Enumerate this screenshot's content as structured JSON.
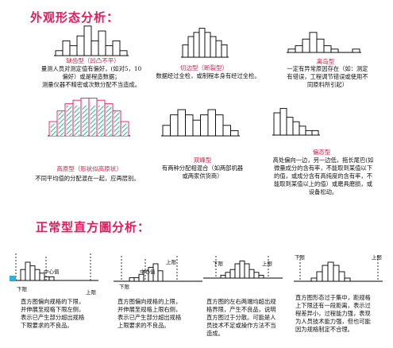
{
  "section1": {
    "title": "外观形态分析：",
    "patterns": [
      {
        "title": "缺齿型（凹凸不平）",
        "desc": [
          "量测人员对测定值有偏好，(如对5，10",
          "偏好）或是程造数据；",
          "测量仪器不精密或次数分配不当造成。"
        ]
      },
      {
        "title": "切边型（断裂型）",
        "desc": [
          "数据经过全检，或制程本身有经过全检。"
        ]
      },
      {
        "title": "离岛型",
        "desc": [
          "一定有异常原因存在（如：测定",
          "有错误，工程调节错误或使用不",
          "同原料所引起）"
        ]
      },
      {
        "title": "高原型（形状似高原状）",
        "desc": [
          "不同平均值的分配混在一起，应再层别。"
        ]
      },
      {
        "title": "双峰型",
        "desc": [
          "有两种分配相混合（如两部机器",
          "或两家供货商）"
        ]
      },
      {
        "title": "偏态型",
        "desc": [
          "高处偏向一边，另一边低，拖长尾巴(如",
          "微量成分的含有率，不能取到某值以下",
          "的值，或成分含有高纯度的含有率，不",
          "能取到某值以上的值）或磨具磨损，或",
          "设备松动。"
        ]
      }
    ]
  },
  "section2": {
    "title": "正常型直方圖分析：",
    "labels": {
      "lower": "下限",
      "center": "中心值",
      "upper": "上限"
    },
    "cases": [
      {
        "desc": [
          "直方图偏向规格的下限，",
          "并伸展至规格下限左侧，",
          "表示已产生部分超出规格",
          "下限要求的不良品。"
        ]
      },
      {
        "desc": [
          "直方图偏向规格的上限，",
          "并伸展至规格上限右侧，",
          "表示已产生部分超出规格",
          "上限要求的不良品。"
        ]
      },
      {
        "desc": [
          "直方图的左右两端均超出规",
          "格界限，产生不良品，说明",
          "直方图过于分散。可能是人",
          "员技术不足或操作方法不当",
          "造成。"
        ]
      },
      {
        "desc": [
          "直方图形态过于集中，距规格",
          "上下限还有一段距离，表示过",
          "程差异小，过程能力强，表现",
          "为人员技术能力强，但也可能",
          "因为规格制定不合理。"
        ]
      }
    ]
  },
  "chart_data": [
    {
      "type": "bar",
      "values": [
        1,
        3,
        2,
        4,
        6,
        3,
        5,
        2,
        3,
        1
      ]
    },
    {
      "type": "bar",
      "values": [
        3,
        5,
        6,
        7,
        6,
        5,
        4,
        3
      ]
    },
    {
      "type": "bar",
      "values": [
        1,
        2,
        4,
        6,
        4,
        2,
        1,
        0,
        0,
        1
      ]
    },
    {
      "type": "bar",
      "values": [
        2,
        4,
        5,
        5,
        5,
        5,
        5,
        5,
        4,
        2
      ]
    },
    {
      "type": "bar",
      "values": [
        2,
        4,
        5,
        4,
        3,
        4,
        5,
        4,
        2,
        1
      ]
    },
    {
      "type": "bar",
      "values": [
        5,
        6,
        4,
        3,
        2,
        1,
        1
      ]
    },
    {
      "type": "bar",
      "values": [
        3,
        5,
        4,
        3,
        2,
        1,
        1
      ]
    },
    {
      "type": "bar",
      "values": [
        1,
        1,
        2,
        3,
        4,
        5,
        3
      ]
    },
    {
      "type": "bar",
      "values": [
        1,
        2,
        3,
        5,
        6,
        5,
        3,
        2,
        1
      ]
    },
    {
      "type": "bar",
      "values": [
        1,
        3,
        5,
        6,
        5,
        3,
        1
      ]
    }
  ],
  "colors": {
    "title": "#e8195a",
    "pattern_title": "#d0234a",
    "line": "#000000",
    "red_outline": "#e8195a",
    "hatch": "#33bb99",
    "cyan": "#22b5e5"
  }
}
